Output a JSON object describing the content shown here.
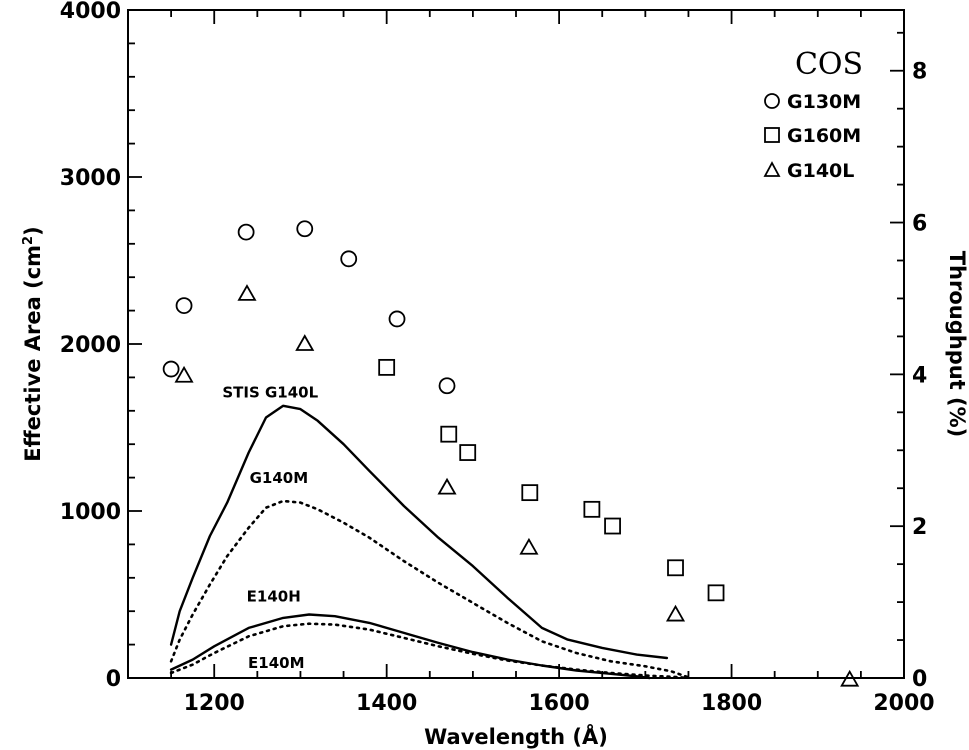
{
  "chart_data": {
    "type": "scatter",
    "xlabel": "Wavelength (Å)",
    "ylabel": "Effective Area (cm²)",
    "ylabel_main": "Effective Area (cm",
    "ylabel_sup": "2",
    "ylabel_end": ")",
    "y2label": "Throughput (%)",
    "xlim": [
      1100,
      2000
    ],
    "ylim": [
      0,
      4000
    ],
    "y2lim": [
      0,
      8.8
    ],
    "x_ticks": [
      1200,
      1400,
      1600,
      1800,
      2000
    ],
    "x_tick_labels": [
      "1200",
      "1400",
      "1600",
      "1800",
      "2000"
    ],
    "y_ticks": [
      0,
      1000,
      2000,
      3000,
      4000
    ],
    "y_tick_labels": [
      "0",
      "1000",
      "2000",
      "3000",
      "4000"
    ],
    "y2_ticks": [
      0,
      2,
      4,
      6,
      8
    ],
    "y2_tick_labels": [
      "0",
      "2",
      "4",
      "6",
      "8"
    ],
    "grid": false,
    "legend": {
      "placement": "top-right",
      "title": "COS",
      "entries": [
        {
          "label": "G130M",
          "marker": "circle"
        },
        {
          "label": "G160M",
          "marker": "square"
        },
        {
          "label": "G140L",
          "marker": "triangle"
        }
      ]
    },
    "series": [
      {
        "name": "G130M",
        "marker": "circle",
        "x": [
          1150,
          1165,
          1237,
          1305,
          1356,
          1412,
          1470
        ],
        "y": [
          1850,
          2230,
          2670,
          2690,
          2510,
          2150,
          1750
        ]
      },
      {
        "name": "G160M",
        "marker": "square",
        "x": [
          1400,
          1472,
          1494,
          1566,
          1638,
          1662,
          1735,
          1782
        ],
        "y": [
          1860,
          1460,
          1350,
          1110,
          1010,
          910,
          660,
          510
        ]
      },
      {
        "name": "G140L",
        "marker": "triangle",
        "x": [
          1165,
          1238,
          1305,
          1470,
          1565,
          1735,
          1937
        ],
        "y": [
          1810,
          2300,
          2000,
          1140,
          780,
          380,
          -10
        ]
      }
    ],
    "curves": [
      {
        "name": "STIS G140L",
        "style": "solid",
        "x": [
          1150,
          1160,
          1175,
          1195,
          1215,
          1240,
          1260,
          1280,
          1300,
          1320,
          1350,
          1380,
          1420,
          1460,
          1500,
          1540,
          1580,
          1610,
          1650,
          1690,
          1725
        ],
        "y": [
          200,
          400,
          600,
          850,
          1050,
          1350,
          1560,
          1630,
          1610,
          1540,
          1400,
          1240,
          1030,
          840,
          670,
          480,
          300,
          230,
          180,
          140,
          120
        ]
      },
      {
        "name": "G140M",
        "style": "dotted",
        "x": [
          1150,
          1160,
          1175,
          1195,
          1215,
          1240,
          1260,
          1280,
          1300,
          1320,
          1350,
          1380,
          1420,
          1460,
          1500,
          1540,
          1580,
          1620,
          1660,
          1700,
          1730,
          1752
        ],
        "y": [
          100,
          230,
          380,
          560,
          730,
          900,
          1020,
          1060,
          1050,
          1010,
          930,
          840,
          700,
          570,
          450,
          330,
          220,
          150,
          100,
          70,
          40,
          0
        ]
      },
      {
        "name": "E140H",
        "style": "solid",
        "x": [
          1150,
          1175,
          1200,
          1240,
          1280,
          1310,
          1340,
          1380,
          1420,
          1460,
          1500,
          1540,
          1580,
          1620,
          1660,
          1690,
          1705
        ],
        "y": [
          50,
          110,
          190,
          300,
          360,
          380,
          370,
          330,
          270,
          210,
          155,
          110,
          75,
          45,
          25,
          10,
          0
        ]
      },
      {
        "name": "E140M",
        "style": "dotted",
        "x": [
          1150,
          1175,
          1200,
          1240,
          1280,
          1310,
          1340,
          1380,
          1420,
          1460,
          1500,
          1540,
          1580,
          1620,
          1660,
          1700,
          1740,
          1748
        ],
        "y": [
          30,
          80,
          150,
          250,
          310,
          325,
          320,
          290,
          240,
          190,
          145,
          105,
          75,
          50,
          30,
          15,
          5,
          0
        ]
      }
    ],
    "annotations": [
      {
        "text": "STIS G140L",
        "x": 1265,
        "y": 1715
      },
      {
        "text": "G140M",
        "x": 1275,
        "y": 1205
      },
      {
        "text": "E140H",
        "x": 1269,
        "y": 495
      },
      {
        "text": "E140M",
        "x": 1272,
        "y": 95
      }
    ]
  }
}
